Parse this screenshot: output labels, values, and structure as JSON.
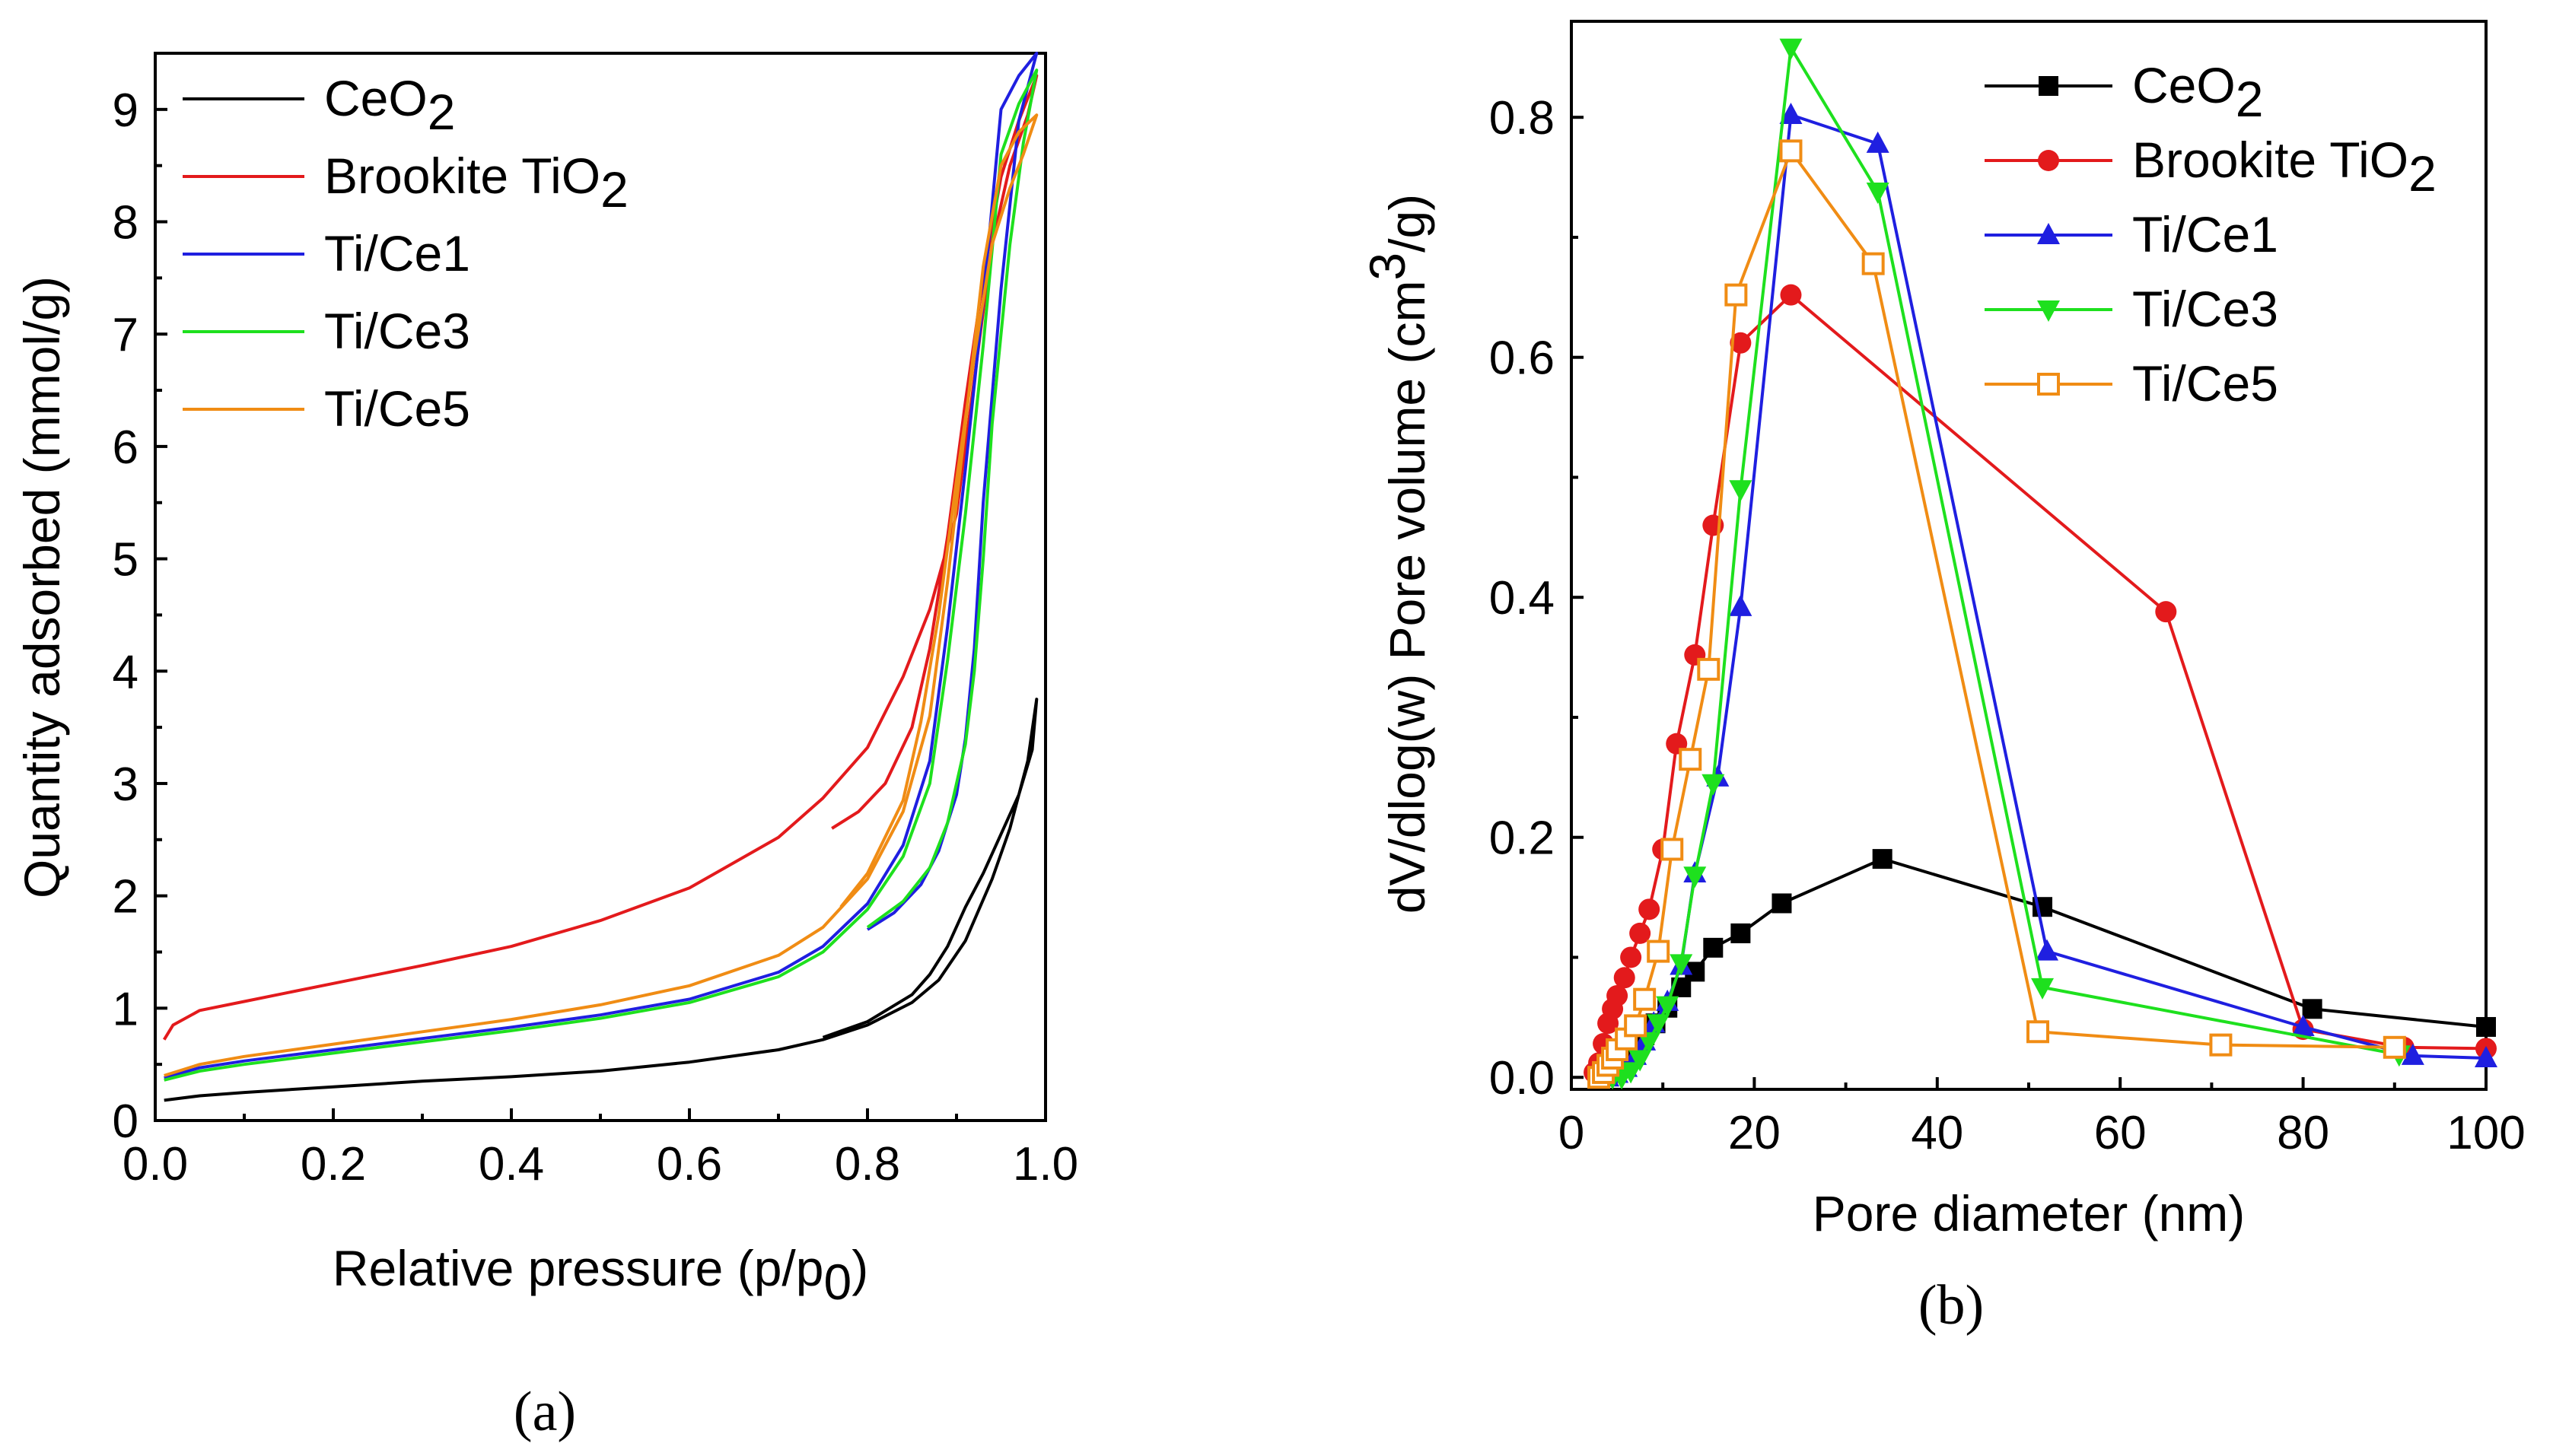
{
  "colors": {
    "CeO2": "#000000",
    "Brookite": "#e31a1c",
    "TiCe1": "#1f1fe0",
    "TiCe3": "#1ee01e",
    "TiCe5": "#f08c14"
  },
  "chart_data": [
    {
      "id": "a",
      "type": "line",
      "caption": {
        "open": "(",
        "letter": "a",
        "close": ")"
      },
      "xlabel": {
        "main": "Relative pressure (p/p",
        "sub": "0",
        "close": ")"
      },
      "ylabel": "Quantity adsorbed (mmol/g)",
      "xlim": [
        0,
        1.0
      ],
      "ylim": [
        0,
        9.5
      ],
      "xticks": [
        "0.0",
        "0.2",
        "0.4",
        "0.6",
        "0.8",
        "1.0"
      ],
      "yticks": [
        "0",
        "1",
        "2",
        "3",
        "4",
        "5",
        "6",
        "7",
        "8",
        "9"
      ],
      "legend": [
        {
          "key": "CeO2",
          "text": "CeO",
          "sub": "2"
        },
        {
          "key": "Brookite",
          "text": "Brookite TiO",
          "sub": "2"
        },
        {
          "key": "TiCe1",
          "text": "Ti/Ce1",
          "sub": ""
        },
        {
          "key": "TiCe3",
          "text": "Ti/Ce3",
          "sub": ""
        },
        {
          "key": "TiCe5",
          "text": "Ti/Ce5",
          "sub": ""
        }
      ],
      "series": [
        {
          "name": "CeO2",
          "color_key": "CeO2",
          "x": [
            0.01,
            0.05,
            0.1,
            0.2,
            0.3,
            0.4,
            0.5,
            0.6,
            0.7,
            0.75,
            0.8,
            0.85,
            0.88,
            0.91,
            0.94,
            0.96,
            0.98,
            0.99,
            0.985,
            0.97,
            0.95,
            0.93,
            0.91,
            0.89,
            0.87,
            0.85,
            0.8,
            0.75
          ],
          "y": [
            0.18,
            0.22,
            0.25,
            0.3,
            0.35,
            0.39,
            0.44,
            0.52,
            0.63,
            0.72,
            0.85,
            1.05,
            1.25,
            1.6,
            2.15,
            2.6,
            3.2,
            3.75,
            3.3,
            2.9,
            2.55,
            2.2,
            1.9,
            1.55,
            1.3,
            1.12,
            0.88,
            0.74
          ]
        },
        {
          "name": "Brookite TiO2",
          "color_key": "Brookite",
          "x": [
            0.01,
            0.02,
            0.05,
            0.1,
            0.2,
            0.3,
            0.4,
            0.5,
            0.6,
            0.7,
            0.75,
            0.8,
            0.84,
            0.87,
            0.9,
            0.92,
            0.94,
            0.96,
            0.98,
            0.99,
            0.97,
            0.95,
            0.93,
            0.91,
            0.89,
            0.87,
            0.85,
            0.82,
            0.79,
            0.76
          ],
          "y": [
            0.72,
            0.85,
            0.98,
            1.06,
            1.22,
            1.38,
            1.55,
            1.78,
            2.07,
            2.52,
            2.87,
            3.32,
            3.95,
            4.55,
            5.4,
            6.6,
            7.8,
            8.5,
            8.95,
            9.3,
            8.9,
            8.4,
            7.5,
            6.4,
            5.2,
            4.2,
            3.5,
            3.0,
            2.75,
            2.6
          ]
        },
        {
          "name": "Ti/Ce1",
          "color_key": "TiCe1",
          "x": [
            0.01,
            0.05,
            0.1,
            0.2,
            0.3,
            0.4,
            0.5,
            0.6,
            0.7,
            0.75,
            0.8,
            0.84,
            0.87,
            0.89,
            0.91,
            0.93,
            0.95,
            0.97,
            0.99,
            0.97,
            0.95,
            0.93,
            0.92,
            0.91,
            0.9,
            0.88,
            0.86,
            0.83,
            0.8
          ],
          "y": [
            0.38,
            0.47,
            0.53,
            0.63,
            0.73,
            0.83,
            0.94,
            1.08,
            1.32,
            1.55,
            1.93,
            2.45,
            3.2,
            4.4,
            5.8,
            7.3,
            9.0,
            9.3,
            9.5,
            8.9,
            7.4,
            5.5,
            4.2,
            3.4,
            2.9,
            2.4,
            2.1,
            1.85,
            1.7
          ]
        },
        {
          "name": "Ti/Ce3",
          "color_key": "TiCe3",
          "x": [
            0.01,
            0.05,
            0.1,
            0.2,
            0.3,
            0.4,
            0.5,
            0.6,
            0.7,
            0.75,
            0.8,
            0.84,
            0.87,
            0.89,
            0.91,
            0.93,
            0.95,
            0.97,
            0.99,
            0.975,
            0.96,
            0.94,
            0.93,
            0.92,
            0.91,
            0.89,
            0.87,
            0.84,
            0.8
          ],
          "y": [
            0.36,
            0.44,
            0.5,
            0.6,
            0.7,
            0.8,
            0.91,
            1.05,
            1.28,
            1.5,
            1.88,
            2.35,
            3.0,
            4.1,
            5.4,
            6.9,
            8.6,
            9.05,
            9.35,
            8.7,
            7.8,
            6.2,
            5.0,
            4.0,
            3.35,
            2.65,
            2.25,
            1.95,
            1.72
          ]
        },
        {
          "name": "Ti/Ce5",
          "color_key": "TiCe5",
          "x": [
            0.01,
            0.05,
            0.1,
            0.2,
            0.3,
            0.4,
            0.5,
            0.6,
            0.7,
            0.75,
            0.8,
            0.84,
            0.87,
            0.89,
            0.91,
            0.93,
            0.95,
            0.97,
            0.99,
            0.975,
            0.96,
            0.94,
            0.92,
            0.9,
            0.88,
            0.86,
            0.84,
            0.8,
            0.77
          ],
          "y": [
            0.4,
            0.5,
            0.57,
            0.68,
            0.79,
            0.9,
            1.03,
            1.2,
            1.47,
            1.72,
            2.15,
            2.75,
            3.6,
            4.8,
            6.2,
            7.6,
            8.5,
            8.8,
            8.95,
            8.6,
            8.3,
            7.8,
            6.8,
            5.7,
            4.5,
            3.55,
            2.85,
            2.2,
            1.9
          ]
        }
      ]
    },
    {
      "id": "b",
      "type": "line",
      "caption": {
        "open": "(",
        "letter": "b",
        "close": ")"
      },
      "xlabel": {
        "main": "Pore diameter (nm)"
      },
      "ylabel": {
        "main": "dV/dlog(w) Pore volume (cm",
        "sup": "3",
        "close": "/g)"
      },
      "xlim": [
        0,
        100
      ],
      "ylim": [
        -0.01,
        0.88
      ],
      "xticks": [
        "0",
        "20",
        "40",
        "60",
        "80",
        "100"
      ],
      "yticks": [
        "0.0",
        "0.2",
        "0.4",
        "0.6",
        "0.8"
      ],
      "legend": [
        {
          "key": "CeO2",
          "text": "CeO",
          "sub": "2",
          "marker": "square"
        },
        {
          "key": "Brookite",
          "text": "Brookite TiO",
          "sub": "2",
          "marker": "circle"
        },
        {
          "key": "TiCe1",
          "text": "Ti/Ce1",
          "sub": "",
          "marker": "triangle-up"
        },
        {
          "key": "TiCe3",
          "text": "Ti/Ce3",
          "sub": "",
          "marker": "triangle-down"
        },
        {
          "key": "TiCe5",
          "text": "Ti/Ce5",
          "sub": "",
          "marker": "open-square"
        }
      ],
      "series": [
        {
          "name": "CeO2",
          "color_key": "CeO2",
          "marker": "square",
          "x": [
            3.5,
            4.2,
            5,
            6,
            7,
            8,
            9.2,
            10.5,
            12,
            13.5,
            15.5,
            18.5,
            23,
            34,
            51.5,
            81,
            100
          ],
          "y": [
            0.002,
            0.006,
            0.012,
            0.018,
            0.028,
            0.035,
            0.045,
            0.058,
            0.075,
            0.088,
            0.108,
            0.12,
            0.145,
            0.182,
            0.142,
            0.057,
            0.042
          ]
        },
        {
          "name": "Brookite TiO2",
          "color_key": "Brookite",
          "marker": "circle",
          "x": [
            2.5,
            3,
            3.5,
            4,
            4.5,
            5,
            5.8,
            6.5,
            7.5,
            8.5,
            10,
            11.5,
            13.5,
            15.5,
            18.5,
            24,
            65,
            80,
            91,
            100
          ],
          "y": [
            0.004,
            0.012,
            0.028,
            0.045,
            0.057,
            0.068,
            0.083,
            0.1,
            0.12,
            0.14,
            0.19,
            0.278,
            0.352,
            0.46,
            0.612,
            0.652,
            0.388,
            0.04,
            0.025,
            0.024
          ]
        },
        {
          "name": "Ti/Ce1",
          "color_key": "TiCe1",
          "marker": "triangle-up",
          "x": [
            4,
            5,
            6,
            7,
            8,
            9,
            10.5,
            12,
            13.5,
            16,
            18.5,
            24,
            33.5,
            52,
            80,
            92,
            100
          ],
          "y": [
            0.0,
            0.003,
            0.008,
            0.018,
            0.03,
            0.045,
            0.063,
            0.093,
            0.17,
            0.25,
            0.392,
            0.802,
            0.778,
            0.105,
            0.042,
            0.018,
            0.016
          ]
        },
        {
          "name": "Ti/Ce3",
          "color_key": "TiCe3",
          "marker": "triangle-down",
          "x": [
            4.5,
            5.5,
            6.5,
            7.5,
            8.5,
            9.5,
            10.5,
            12,
            13.5,
            15.5,
            18.5,
            24,
            33.5,
            51.5,
            90.5
          ],
          "y": [
            0.0,
            0.0,
            0.005,
            0.015,
            0.03,
            0.045,
            0.06,
            0.095,
            0.168,
            0.245,
            0.49,
            0.858,
            0.738,
            0.075,
            0.019
          ]
        },
        {
          "name": "Ti/Ce5",
          "color_key": "TiCe5",
          "marker": "open-square",
          "x": [
            3,
            3.5,
            4,
            4.5,
            5,
            6,
            7,
            8,
            9.5,
            11,
            13,
            15,
            18,
            24,
            33,
            51,
            71,
            90
          ],
          "y": [
            0.0,
            0.004,
            0.01,
            0.016,
            0.023,
            0.032,
            0.043,
            0.065,
            0.105,
            0.19,
            0.265,
            0.34,
            0.652,
            0.772,
            0.678,
            0.038,
            0.027,
            0.025
          ]
        }
      ]
    }
  ]
}
